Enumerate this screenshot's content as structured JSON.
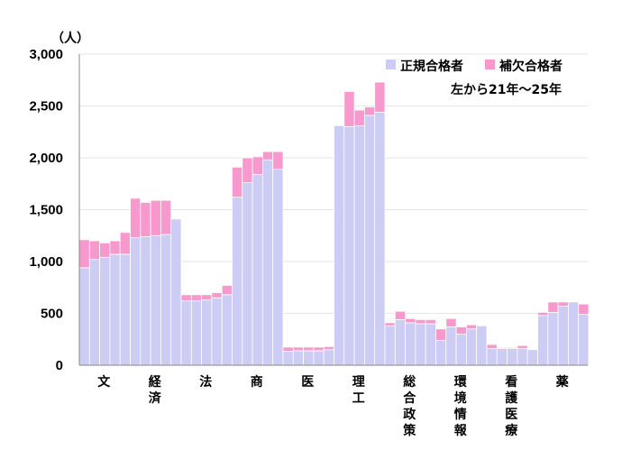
{
  "chart_data": {
    "type": "bar",
    "stacked": true,
    "ylabel": "（人）",
    "ylim": [
      0,
      3000
    ],
    "yticks": [
      "3,000",
      "2,500",
      "2,000",
      "1,500",
      "1,000",
      "500",
      "0"
    ],
    "legend_position": "top-right",
    "note": "左から21年～25年",
    "colors": {
      "regular": "#ccccf5",
      "supplementary": "#f799cc"
    },
    "series": [
      {
        "name": "正規合格者",
        "key": "regular"
      },
      {
        "name": "補欠合格者",
        "key": "supplementary"
      }
    ],
    "categories": [
      {
        "label": "文",
        "regular": [
          940,
          1020,
          1040,
          1070,
          1070
        ],
        "supplementary": [
          270,
          180,
          140,
          130,
          210
        ]
      },
      {
        "label": "経済",
        "regular": [
          1230,
          1240,
          1250,
          1260,
          1410
        ],
        "supplementary": [
          380,
          330,
          340,
          330,
          0
        ]
      },
      {
        "label": "法",
        "regular": [
          620,
          620,
          630,
          650,
          680
        ],
        "supplementary": [
          60,
          60,
          50,
          50,
          90
        ]
      },
      {
        "label": "商",
        "regular": [
          1620,
          1760,
          1840,
          1980,
          1890
        ],
        "supplementary": [
          290,
          240,
          170,
          80,
          170
        ]
      },
      {
        "label": "医",
        "regular": [
          135,
          140,
          140,
          140,
          150
        ],
        "supplementary": [
          40,
          35,
          35,
          35,
          30
        ]
      },
      {
        "label": "理工",
        "regular": [
          2310,
          2300,
          2310,
          2410,
          2440
        ],
        "supplementary": [
          0,
          340,
          150,
          80,
          290
        ]
      },
      {
        "label": "総合政策",
        "regular": [
          380,
          440,
          410,
          400,
          400
        ],
        "supplementary": [
          30,
          80,
          40,
          40,
          40
        ]
      },
      {
        "label": "環境情報",
        "regular": [
          240,
          370,
          300,
          350,
          380
        ],
        "supplementary": [
          110,
          80,
          70,
          40,
          0
        ]
      },
      {
        "label": "看護医療",
        "regular": [
          160,
          160,
          160,
          160,
          150
        ],
        "supplementary": [
          40,
          10,
          10,
          30,
          0
        ]
      },
      {
        "label": "薬",
        "regular": [
          480,
          510,
          570,
          610,
          490
        ],
        "supplementary": [
          30,
          100,
          40,
          0,
          100
        ]
      }
    ]
  }
}
